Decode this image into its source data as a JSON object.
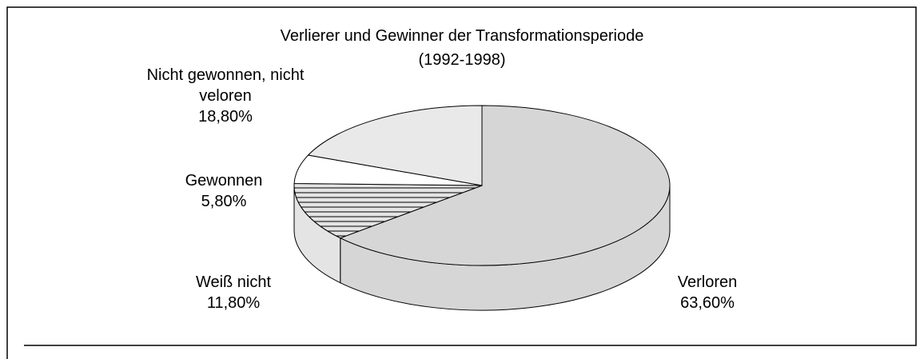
{
  "chart_data": {
    "type": "pie3d",
    "title": "Verlierer und Gewinner der Transformationsperiode",
    "subtitle": "(1992-1998)",
    "categories": [
      "Verloren",
      "Weiß nicht",
      "Gewonnen",
      "Nicht gewonnen, nicht veloren"
    ],
    "values": [
      63.6,
      11.8,
      5.8,
      18.8
    ],
    "value_labels": [
      "63,60%",
      "11,80%",
      "5,80%",
      "18,80%"
    ],
    "colors": [
      "#d6d6d6",
      "#e4e4e4",
      "#ffffff",
      "#e9e9e9"
    ]
  }
}
